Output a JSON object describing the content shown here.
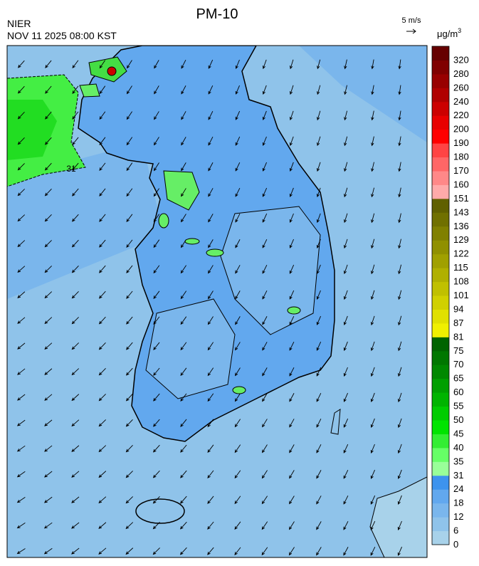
{
  "header": {
    "agency": "NIER",
    "title": "PM-10",
    "time": "NOV 11 2025 08:00 KST"
  },
  "wind_scale": {
    "label": "5 m/s"
  },
  "map": {
    "contour_label": "31"
  },
  "colorbar": {
    "unit": "μg/m",
    "unit_exponent": "3",
    "ticks": [
      0,
      6,
      12,
      18,
      24,
      31,
      35,
      40,
      45,
      50,
      55,
      60,
      65,
      70,
      75,
      81,
      87,
      94,
      101,
      108,
      115,
      122,
      129,
      136,
      143,
      151,
      160,
      170,
      180,
      190,
      200,
      220,
      240,
      260,
      280,
      320
    ],
    "colors": [
      "#a8d2ea",
      "#8fc3ea",
      "#7ab6ec",
      "#62a8ee",
      "#3d93ee",
      "#99ff99",
      "#66ff66",
      "#33ee33",
      "#00e400",
      "#00cc00",
      "#00b400",
      "#009f00",
      "#008800",
      "#007700",
      "#006400",
      "#f0f000",
      "#e0e000",
      "#d0d000",
      "#c0c000",
      "#b0b000",
      "#a0a000",
      "#909000",
      "#808000",
      "#707000",
      "#606000",
      "#ffaaaa",
      "#ff8888",
      "#ff6666",
      "#ff4444",
      "#ff0000",
      "#e80000",
      "#cc0000",
      "#b00000",
      "#980000",
      "#800000",
      "#660000"
    ]
  }
}
